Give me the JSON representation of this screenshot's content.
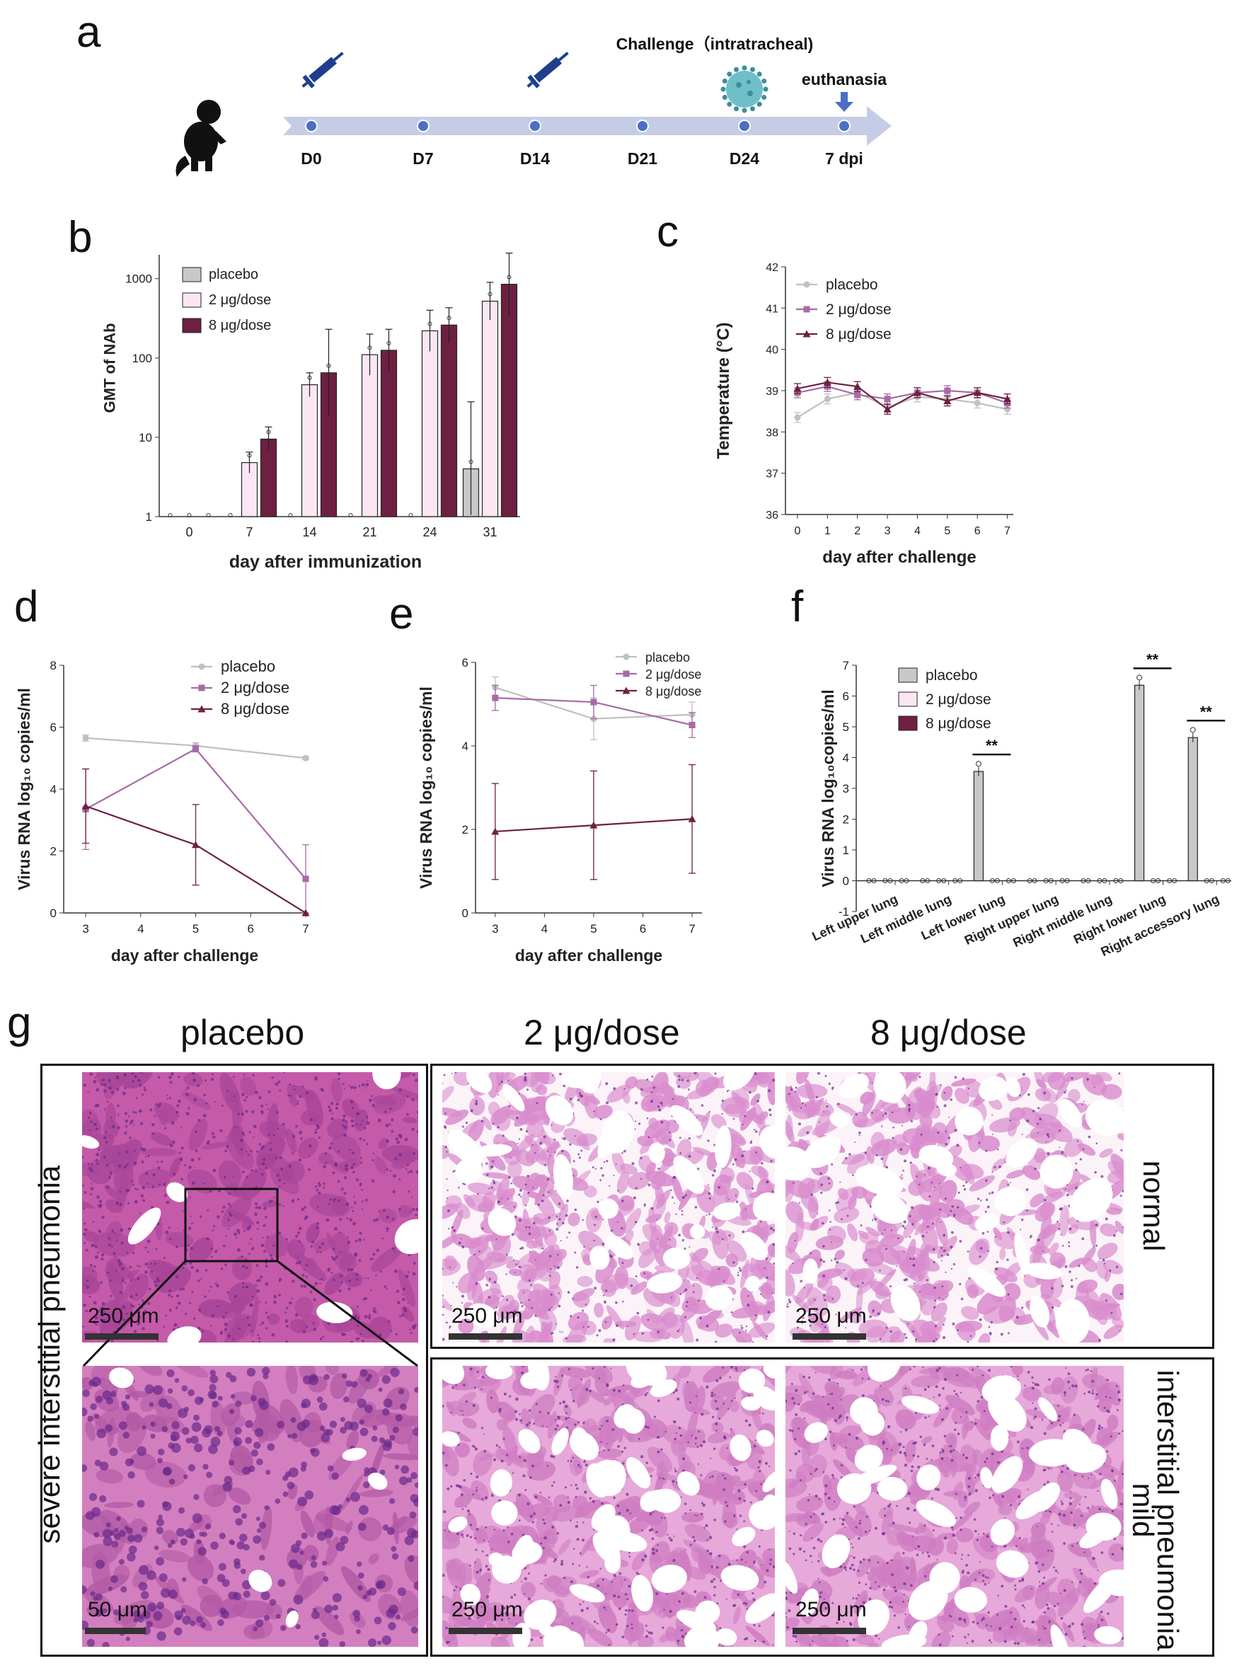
{
  "panels": {
    "a": "a",
    "b": "b",
    "c": "c",
    "d": "d",
    "e": "e",
    "f": "f",
    "g": "g"
  },
  "timeline": {
    "challenge_label": "Challenge（intratracheal)",
    "euthanasia_label": "euthanasia",
    "days": [
      "D0",
      "D7",
      "D14",
      "D21",
      "D24",
      "7 dpi"
    ],
    "icons": [
      "monkey-icon",
      "syringe-icon",
      "syringe-icon",
      "virus-icon",
      "down-arrow-icon"
    ],
    "colors": {
      "arrow": "#c5cde6",
      "dot": "#4a6fc4",
      "syringe": "#1f3f8c",
      "virus": "#6fbfc9"
    }
  },
  "colors": {
    "placebo": "#c8c8c8",
    "dose2": "#fbe6f4",
    "dose8": "#6e2042",
    "line_placebo": "#c0c0c0",
    "line_dose2": "#a86aa6",
    "line_dose8": "#6e2042"
  },
  "chart_data": [
    {
      "id": "b",
      "type": "bar",
      "ylabel": "GMT of NAb",
      "xlabel": "day after immunization",
      "yscale": "log",
      "ylim": [
        1,
        2000
      ],
      "yticks": [
        "1",
        "10",
        "100",
        "1000"
      ],
      "categories": [
        "0",
        "7",
        "14",
        "21",
        "24",
        "31"
      ],
      "legend_position": "top-left",
      "series": [
        {
          "name": "placebo",
          "values": [
            1,
            1,
            1,
            1,
            1,
            4
          ],
          "err_hi": [
            1,
            1,
            1,
            1,
            1,
            28
          ]
        },
        {
          "name": "2 μg/dose",
          "values": [
            1,
            4.8,
            46,
            110,
            220,
            520
          ],
          "err_hi": [
            1,
            6.5,
            65,
            200,
            400,
            900
          ]
        },
        {
          "name": "8 μg/dose",
          "values": [
            1,
            9.5,
            65,
            125,
            260,
            850
          ],
          "err_hi": [
            1,
            13.5,
            230,
            230,
            430,
            2100
          ]
        }
      ]
    },
    {
      "id": "c",
      "type": "line",
      "ylabel": "Temperature (°C)",
      "xlabel": "day after challenge",
      "ylim": [
        36,
        42
      ],
      "yticks": [
        "36",
        "37",
        "38",
        "39",
        "40",
        "41",
        "42"
      ],
      "x": [
        0,
        1,
        2,
        3,
        4,
        5,
        6,
        7
      ],
      "legend_position": "top-left",
      "series": [
        {
          "name": "placebo",
          "values": [
            38.35,
            38.8,
            38.95,
            38.6,
            38.85,
            38.8,
            38.7,
            38.55
          ]
        },
        {
          "name": "2 μg/dose",
          "values": [
            38.95,
            39.1,
            38.9,
            38.8,
            38.95,
            39.0,
            38.95,
            38.7
          ]
        },
        {
          "name": "8 μg/dose",
          "values": [
            39.05,
            39.2,
            39.1,
            38.55,
            38.95,
            38.75,
            38.95,
            38.8
          ]
        }
      ]
    },
    {
      "id": "d",
      "type": "line",
      "ylabel": "Virus RNA  log₁₀ copies/ml",
      "xlabel": "day after challenge",
      "ylim": [
        0,
        8
      ],
      "yticks": [
        "0",
        "2",
        "4",
        "6",
        "8"
      ],
      "xticks": [
        "3",
        "4",
        "5",
        "6",
        "7"
      ],
      "x": [
        3,
        5,
        7
      ],
      "legend_position": "top-right",
      "series": [
        {
          "name": "placebo",
          "values": [
            5.65,
            5.4,
            5.0
          ],
          "err": [
            0.1,
            0.1,
            0.05
          ]
        },
        {
          "name": "2 μg/dose",
          "values": [
            3.35,
            5.3,
            1.1
          ],
          "err": [
            1.3,
            0.1,
            1.1
          ]
        },
        {
          "name": "8 μg/dose",
          "values": [
            3.45,
            2.2,
            0.0
          ],
          "err": [
            1.2,
            1.3,
            0.0
          ]
        }
      ]
    },
    {
      "id": "e",
      "type": "line",
      "ylabel": "Virus RNA log₁₀ copies/ml",
      "xlabel": "day after challenge",
      "ylim": [
        0,
        6
      ],
      "yticks": [
        "0",
        "2",
        "4",
        "6"
      ],
      "xticks": [
        "3",
        "4",
        "5",
        "6",
        "7"
      ],
      "x": [
        3,
        5,
        7
      ],
      "legend_position": "top-right",
      "series": [
        {
          "name": "placebo",
          "values": [
            5.4,
            4.65,
            4.75
          ],
          "err": [
            0.25,
            0.5,
            0.3
          ]
        },
        {
          "name": "2 μg/dose",
          "values": [
            5.15,
            5.05,
            4.5
          ],
          "err": [
            0.3,
            0.4,
            0.3
          ]
        },
        {
          "name": "8 μg/dose",
          "values": [
            1.95,
            2.1,
            2.25
          ],
          "err": [
            1.15,
            1.3,
            1.3
          ]
        }
      ]
    },
    {
      "id": "f",
      "type": "bar",
      "ylabel": "Virus RNA  log₁₀copies/ml",
      "ylim": [
        -1,
        7
      ],
      "yticks": [
        "-1",
        "0",
        "1",
        "2",
        "3",
        "4",
        "5",
        "6",
        "7"
      ],
      "categories": [
        "Left upper lung",
        "Left  middle lung",
        "Left  lower lung",
        "Right upper lung",
        "Right middle lung",
        "Right lower lung",
        "Right accessory lung"
      ],
      "legend_position": "top-left",
      "significance": [
        {
          "category": "Left  lower lung",
          "label": "**"
        },
        {
          "category": "Right lower lung",
          "label": "**"
        },
        {
          "category": "Right accessory lung",
          "label": "**"
        }
      ],
      "series": [
        {
          "name": "placebo",
          "values": [
            0,
            0,
            3.55,
            0,
            0,
            6.35,
            4.65
          ]
        },
        {
          "name": "2 μg/dose",
          "values": [
            0,
            0,
            0,
            0,
            0,
            0,
            0
          ]
        },
        {
          "name": "8 μg/dose",
          "values": [
            0,
            0,
            0,
            0,
            0,
            0,
            0
          ]
        }
      ]
    }
  ],
  "histology": {
    "columns": [
      "placebo",
      "2 μg/dose",
      "8 μg/dose"
    ],
    "row_left": "severe interstitial pneumonia",
    "row_top": "normal",
    "row_bottom_line1": "mild",
    "row_bottom_line2": "interstitial pneumonia",
    "scales": {
      "placebo_top": "250 μm",
      "placebo_zoom": "50 μm",
      "d2_top": "250 μm",
      "d8_top": "250 μm",
      "d2_bottom": "250 μm",
      "d8_bottom": "250 μm"
    },
    "colors": {
      "tissue_dense": "#c45aa8",
      "tissue_light": "#f3d6ec",
      "nuclei": "#6a2a8a",
      "background": "#fbf3f8"
    }
  }
}
